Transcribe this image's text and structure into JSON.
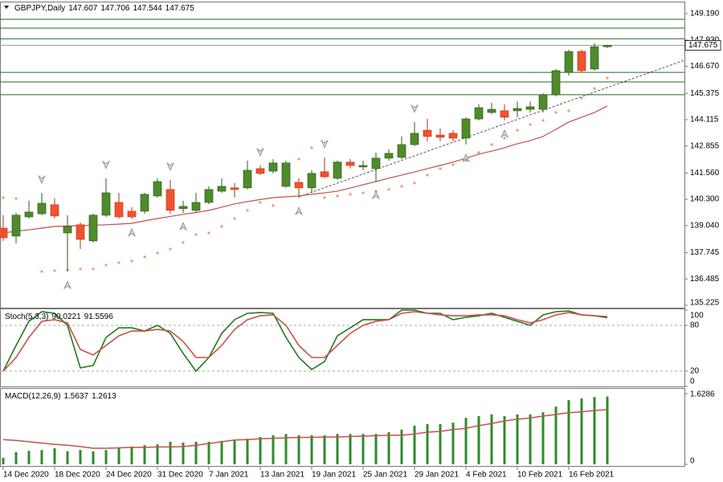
{
  "chart_data": [
    {
      "type": "candlestick",
      "title": "GBPJPY,Daily",
      "header_values": [
        147.607,
        147.706,
        147.544,
        147.675
      ],
      "categories": [
        "14 Dec 2020",
        null,
        null,
        null,
        "18 Dec 2020",
        null,
        null,
        null,
        "24 Dec 2020",
        null,
        null,
        null,
        "31 Dec 2020",
        null,
        null,
        null,
        "7 Jan 2021",
        null,
        null,
        null,
        "13 Jan 2021",
        null,
        null,
        null,
        "19 Jan 2021",
        null,
        null,
        null,
        "25 Jan 2021",
        null,
        null,
        null,
        "29 Jan 2021",
        null,
        null,
        null,
        "4 Feb 2021",
        null,
        null,
        null,
        "10 Feb 2021",
        null,
        null,
        null,
        "16 Feb 2021",
        null,
        null,
        null
      ],
      "open": [
        138.92,
        138.54,
        139.46,
        139.61,
        140.04,
        138.69,
        139.08,
        138.31,
        139.54,
        140.15,
        139.73,
        139.73,
        140.46,
        140.77,
        139.85,
        139.77,
        140.15,
        140.69,
        140.85,
        140.85,
        141.77,
        141.65,
        140.92,
        141.11,
        140.85,
        141.62,
        141.31,
        142.08,
        141.85,
        141.77,
        142.27,
        142.31,
        142.92,
        143.61,
        143.38,
        143.46,
        143.23,
        144.15,
        144.46,
        144.54,
        144.54,
        144.61,
        144.61,
        145.31,
        146.38,
        147.38,
        146.54,
        147.607
      ],
      "high": [
        139.54,
        139.65,
        140.23,
        140.61,
        140.34,
        139.54,
        139.19,
        139.61,
        141.31,
        140.61,
        139.92,
        140.61,
        141.31,
        141.23,
        140.23,
        140.61,
        140.92,
        141.31,
        141.08,
        142.15,
        141.92,
        142.23,
        142.15,
        141.31,
        141.69,
        142.31,
        142.15,
        142.23,
        142.15,
        142.54,
        142.69,
        143.31,
        144.0,
        144.15,
        143.69,
        143.61,
        144.23,
        144.85,
        144.92,
        144.85,
        144.99,
        144.99,
        145.38,
        146.54,
        147.46,
        147.46,
        147.77,
        147.706
      ],
      "low": [
        138.31,
        138.19,
        139.38,
        139.54,
        139.38,
        136.84,
        137.92,
        138.23,
        139.46,
        139.38,
        139.35,
        139.61,
        140.38,
        139.61,
        139.65,
        139.69,
        140.07,
        140.61,
        140.38,
        140.77,
        141.46,
        141.54,
        140.85,
        140.38,
        140.61,
        141.31,
        141.23,
        141.77,
        141.69,
        141.15,
        142.15,
        142.23,
        142.85,
        143.08,
        143.08,
        143.08,
        142.92,
        144.08,
        144.38,
        144.08,
        144.23,
        144.46,
        144.46,
        145.23,
        146.23,
        146.38,
        146.46,
        147.544
      ],
      "close": [
        138.46,
        139.54,
        139.69,
        140.11,
        139.5,
        139.0,
        138.38,
        139.54,
        140.61,
        139.46,
        139.46,
        140.54,
        141.15,
        139.77,
        139.96,
        140.15,
        140.77,
        140.92,
        140.77,
        141.69,
        141.54,
        142.04,
        142.04,
        140.85,
        141.54,
        141.38,
        142.08,
        141.92,
        141.92,
        142.27,
        142.5,
        142.92,
        143.46,
        143.31,
        143.27,
        143.23,
        144.15,
        144.69,
        144.61,
        144.23,
        144.65,
        144.73,
        145.31,
        146.46,
        147.38,
        146.46,
        147.61,
        147.675
      ],
      "up_color": "#4f8a2b",
      "down_color": "#f0522e",
      "ma": {
        "color": "#c0504d",
        "values": [
          138.69,
          138.77,
          138.84,
          138.92,
          139.0,
          139.02,
          139.04,
          139.06,
          139.08,
          139.11,
          139.15,
          139.27,
          139.38,
          139.48,
          139.58,
          139.67,
          139.77,
          139.92,
          140.08,
          140.19,
          140.29,
          140.38,
          140.42,
          140.46,
          140.54,
          140.61,
          140.69,
          140.84,
          141.0,
          141.15,
          141.31,
          141.46,
          141.61,
          141.77,
          141.92,
          142.08,
          142.27,
          142.46,
          142.61,
          142.77,
          142.96,
          143.11,
          143.31,
          143.65,
          144.0,
          144.23,
          144.46,
          144.77
        ]
      },
      "sar": {
        "color": "#f29a6e",
        "values": [
          140.38,
          140.34,
          null,
          136.84,
          136.88,
          136.92,
          136.96,
          136.96,
          137.15,
          137.27,
          137.34,
          137.54,
          137.73,
          137.92,
          138.23,
          138.61,
          138.69,
          139.0,
          139.38,
          139.77,
          140.15,
          140.0,
          null,
          142.23,
          142.77,
          140.38,
          140.46,
          140.54,
          140.61,
          140.69,
          140.77,
          140.92,
          141.08,
          141.46,
          141.77,
          141.96,
          142.15,
          142.54,
          142.92,
          143.23,
          143.61,
          143.88,
          144.08,
          144.46,
          144.54,
          145.15,
          145.61,
          146.11
        ]
      },
      "fractals_up": [
        null,
        null,
        null,
        140.61,
        null,
        null,
        null,
        null,
        141.31,
        null,
        null,
        null,
        null,
        141.23,
        null,
        null,
        null,
        null,
        null,
        null,
        141.92,
        null,
        null,
        null,
        null,
        142.31,
        null,
        null,
        null,
        null,
        null,
        null,
        144.0,
        null,
        null,
        null,
        null,
        null,
        null,
        null,
        null,
        null,
        null,
        null,
        null,
        null,
        null,
        null
      ],
      "fractals_down": [
        null,
        null,
        null,
        null,
        null,
        136.84,
        null,
        null,
        null,
        null,
        139.35,
        null,
        null,
        null,
        139.65,
        null,
        null,
        null,
        null,
        null,
        null,
        null,
        null,
        140.38,
        null,
        null,
        null,
        null,
        null,
        141.15,
        null,
        null,
        null,
        null,
        null,
        null,
        142.92,
        null,
        null,
        144.08,
        null,
        null,
        null,
        null,
        null,
        null,
        null,
        null
      ],
      "hlines": [
        148.92,
        148.5,
        147.99,
        146.38,
        145.92,
        145.31
      ],
      "hline_color": "#1f6e1f",
      "trendline": [
        [
          23,
          140.42
        ],
        [
          53,
          146.96
        ]
      ],
      "last_price": 147.675,
      "ylim": [
        135.11,
        149.73
      ],
      "yticks": [
        {
          "value": 149.19,
          "label": "149.190"
        },
        {
          "value": 147.93,
          "label": "147.930"
        },
        {
          "value": 146.67,
          "label": "146.670"
        },
        145.375,
        144.115,
        142.855,
        {
          "value": 141.56,
          "label": "141.560"
        },
        {
          "value": 140.3,
          "label": "140.300"
        },
        {
          "value": 139.04,
          "label": "139.040"
        },
        137.745,
        136.485,
        135.225
      ]
    },
    {
      "type": "stochastic",
      "title": "Stoch(5,3,3)",
      "header_values": [
        90.0221,
        91.5596
      ],
      "series": [
        {
          "color": "#1e7b1e",
          "values": [
            20.0,
            53.7,
            85.3,
            97.9,
            95.8,
            80.0,
            24.2,
            27.4,
            64.2,
            76.8,
            76.8,
            72.6,
            80.0,
            69.5,
            43.2,
            20.0,
            37.9,
            69.5,
            87.4,
            95.8,
            96.8,
            95.8,
            64.2,
            37.9,
            22.1,
            32.6,
            66.3,
            76.8,
            87.4,
            87.4,
            87.4,
            100,
            100,
            95.8,
            95.8,
            87.4,
            90.5,
            92.6,
            95.8,
            90.5,
            85.3,
            80.0,
            93.7,
            97.9,
            98.9,
            93.7,
            92.6,
            90.0221
          ]
        },
        {
          "color": "#c8504a",
          "values": [
            20,
            37.9,
            64.2,
            85.3,
            87.4,
            83.2,
            48.4,
            41.1,
            53.7,
            66.3,
            72.6,
            72.6,
            74.7,
            72.6,
            58.9,
            37.9,
            37.9,
            53.7,
            74.7,
            87.4,
            92.6,
            93.7,
            80.0,
            53.7,
            37.9,
            37.9,
            53.7,
            69.5,
            80.0,
            85.3,
            87.4,
            95.8,
            97.9,
            95.8,
            93.7,
            92.6,
            92.6,
            93.7,
            93.7,
            92.6,
            87.4,
            83.2,
            87.4,
            93.7,
            96.8,
            93.7,
            92.6,
            91.5596
          ]
        }
      ],
      "levels": [
        80,
        20
      ],
      "ylim": [
        0,
        100
      ],
      "yticks": [
        100,
        80,
        20,
        0
      ]
    },
    {
      "type": "macd",
      "title": "MACD(12,26,9)",
      "header_values": [
        1.5637,
        1.2613
      ],
      "histogram": {
        "color": "#2e8b2e",
        "values": [
          0.15,
          0.28,
          0.31,
          0.33,
          0.37,
          0.3,
          0.33,
          0.3,
          0.33,
          0.37,
          0.41,
          0.44,
          0.46,
          0.52,
          0.5,
          0.52,
          0.52,
          0.54,
          0.57,
          0.59,
          0.63,
          0.67,
          0.7,
          0.67,
          0.67,
          0.67,
          0.7,
          0.7,
          0.7,
          0.7,
          0.74,
          0.8,
          0.89,
          0.93,
          0.93,
          0.96,
          1.07,
          1.11,
          1.15,
          1.11,
          1.15,
          1.15,
          1.2,
          1.33,
          1.48,
          1.52,
          1.55,
          1.5637
        ]
      },
      "signal": {
        "color": "#c8504a",
        "values": [
          0.57,
          0.55,
          0.52,
          0.49,
          0.46,
          0.44,
          0.41,
          0.37,
          0.37,
          0.38,
          0.39,
          0.39,
          0.4,
          0.4,
          0.41,
          0.44,
          0.48,
          0.52,
          0.56,
          0.57,
          0.59,
          0.6,
          0.61,
          0.62,
          0.62,
          0.63,
          0.63,
          0.64,
          0.65,
          0.66,
          0.67,
          0.67,
          0.7,
          0.74,
          0.76,
          0.8,
          0.83,
          0.89,
          0.94,
          1.0,
          1.04,
          1.07,
          1.11,
          1.15,
          1.19,
          1.21,
          1.24,
          1.2613
        ]
      },
      "ylim": [
        -0.037,
        1.74
      ],
      "yticks": [
        1.6286,
        0
      ]
    }
  ]
}
